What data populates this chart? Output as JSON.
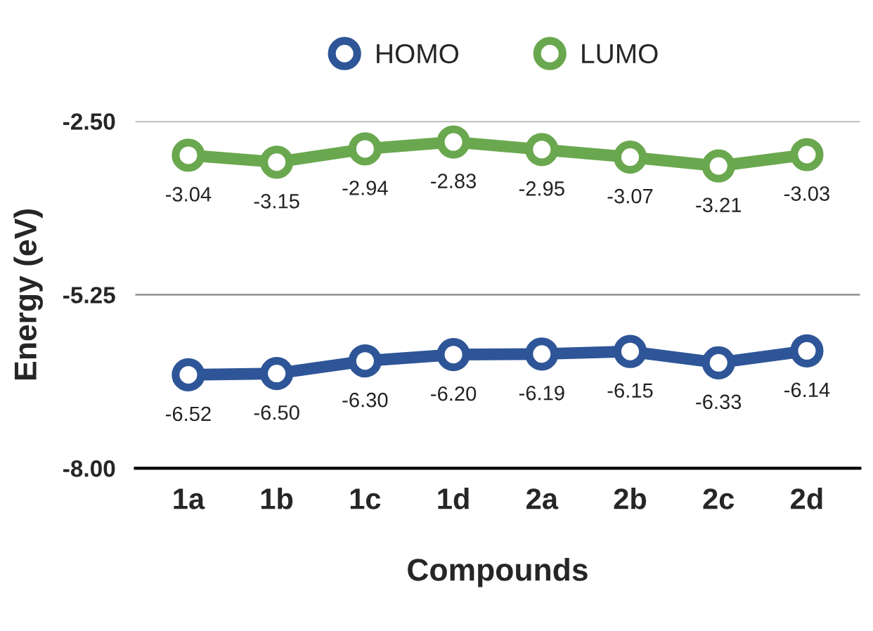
{
  "chart_data": {
    "type": "line",
    "xlabel": "Compounds",
    "ylabel": "Energy (eV)",
    "categories": [
      "1a",
      "1b",
      "1c",
      "1d",
      "2a",
      "2b",
      "2c",
      "2d"
    ],
    "series": [
      {
        "name": "HOMO",
        "color": "#2e5597",
        "values": [
          -6.52,
          -6.5,
          -6.3,
          -6.2,
          -6.19,
          -6.15,
          -6.33,
          -6.14
        ],
        "value_labels": [
          "-6.52",
          "-6.50",
          "-6.30",
          "-6.20",
          "-6.19",
          "-6.15",
          "-6.33",
          "-6.14"
        ]
      },
      {
        "name": "LUMO",
        "color": "#6aa84f",
        "values": [
          -3.04,
          -3.15,
          -2.94,
          -2.83,
          -2.95,
          -3.07,
          -3.21,
          -3.03
        ],
        "value_labels": [
          "-3.04",
          "-3.15",
          "-2.94",
          "-2.83",
          "-2.95",
          "-3.07",
          "-3.21",
          "-3.03"
        ]
      }
    ],
    "ylim": [
      -8.0,
      -2.5
    ],
    "yticks": [
      {
        "value": -8.0,
        "label": "-8.00"
      },
      {
        "value": -5.25,
        "label": "-5.25"
      },
      {
        "value": -2.5,
        "label": "-2.50"
      }
    ],
    "grid": "y",
    "legend": "top",
    "marker": "circle",
    "line_style": "solid"
  }
}
